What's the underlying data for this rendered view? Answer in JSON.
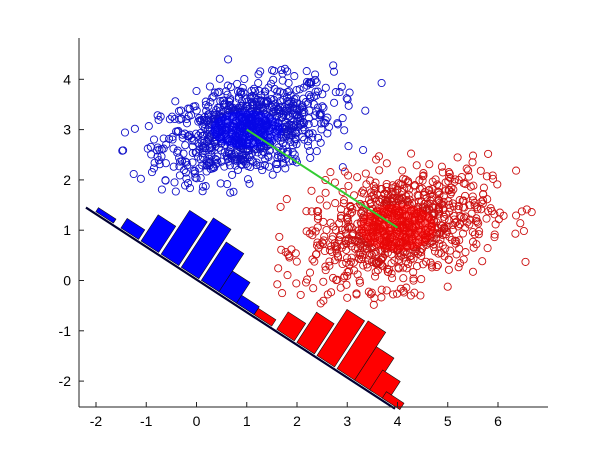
{
  "chart_data": {
    "type": "scatter",
    "title": "",
    "xlabel": "",
    "ylabel": "",
    "xlim": [
      -2.35,
      7.0
    ],
    "ylim": [
      -2.55,
      4.85
    ],
    "grid": false,
    "legend": null,
    "x_ticks": [
      -2,
      -1,
      0,
      1,
      2,
      3,
      4,
      5,
      6
    ],
    "y_ticks": [
      -2,
      -1,
      0,
      1,
      2,
      3,
      4
    ],
    "x_tick_labels": [
      "-2",
      "-1",
      "0",
      "1",
      "2",
      "3",
      "4",
      "5",
      "6"
    ],
    "y_tick_labels": [
      "-2",
      "-1",
      "0",
      "1",
      "2",
      "3",
      "4"
    ],
    "series": [
      {
        "name": "class-blue",
        "marker": "open-circle",
        "color": "#1010c8",
        "fill_dense_color": "#0000ff",
        "count_approx": 1000,
        "mean": [
          1.0,
          3.0
        ],
        "std": [
          0.85,
          0.45
        ],
        "x_range": [
          -1.6,
          3.9
        ],
        "y_range": [
          1.7,
          4.8
        ]
      },
      {
        "name": "class-red",
        "marker": "open-circle",
        "color": "#cc1010",
        "fill_dense_color": "#ff0000",
        "count_approx": 1000,
        "mean": [
          4.0,
          1.05
        ],
        "std": [
          0.9,
          0.55
        ],
        "x_range": [
          1.5,
          6.9
        ],
        "y_range": [
          -0.6,
          2.6
        ]
      }
    ],
    "mean_connector": {
      "color": "#33cc33",
      "from": [
        1.0,
        3.0
      ],
      "to": [
        4.0,
        1.05
      ]
    },
    "projection_axis": {
      "color": "#000033",
      "from": [
        -2.2,
        1.45
      ],
      "to": [
        3.95,
        -2.55
      ]
    },
    "projected_histograms": [
      {
        "name": "blue-projection-histogram",
        "color": "#0000ff",
        "bin_centers_along_axis": [
          -1.85,
          -1.35,
          -0.95,
          -0.55,
          -0.15,
          0.25,
          0.6,
          0.95
        ],
        "relative_heights": [
          0.05,
          0.12,
          0.33,
          0.55,
          0.62,
          0.48,
          0.26,
          0.1
        ]
      },
      {
        "name": "red-projection-histogram",
        "color": "#ff0000",
        "bin_centers_along_axis": [
          1.3,
          1.75,
          2.15,
          2.55,
          2.95,
          3.3,
          3.6,
          3.85
        ],
        "relative_heights": [
          0.08,
          0.22,
          0.38,
          0.58,
          0.6,
          0.42,
          0.25,
          0.08
        ]
      }
    ]
  }
}
